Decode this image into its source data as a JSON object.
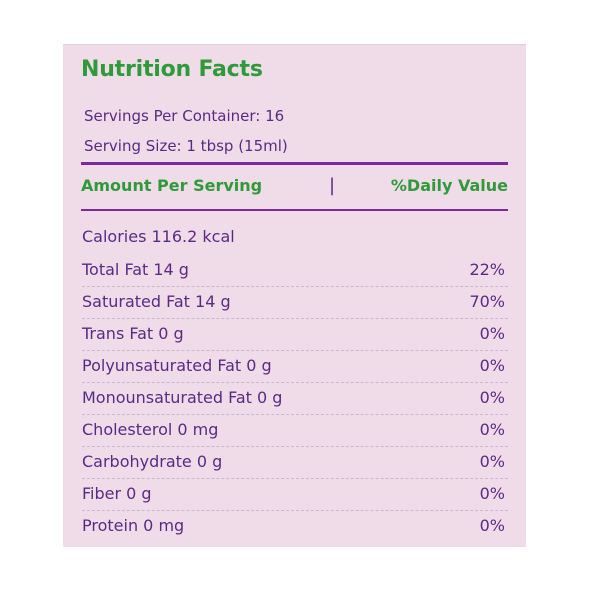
{
  "panel": {
    "title": "Nutrition Facts",
    "servings_per_container": "Servings Per Container: 16",
    "serving_size": "Serving Size: 1 tbsp (15ml)",
    "header_amount": "Amount Per Serving",
    "header_separator": "|",
    "header_daily_value": "%Daily Value",
    "calories": "Calories 116.2 kcal",
    "nutrients": [
      {
        "name": "Total Fat 14 g",
        "dv": "22%"
      },
      {
        "name": "Saturated Fat 14 g",
        "dv": "70%"
      },
      {
        "name": "Trans Fat 0 g",
        "dv": "0%"
      },
      {
        "name": "Polyunsaturated Fat 0 g",
        "dv": "0%"
      },
      {
        "name": "Monounsaturated Fat 0 g",
        "dv": "0%"
      },
      {
        "name": "Cholesterol 0 mg",
        "dv": "0%"
      },
      {
        "name": "Carbohydrate 0 g",
        "dv": "0%"
      },
      {
        "name": "Fiber 0 g",
        "dv": "0%"
      },
      {
        "name": "Protein 0 mg",
        "dv": "0%"
      }
    ]
  },
  "colors": {
    "panel_background": "#f0dbe8",
    "heading_green": "#2f9a3a",
    "text_purple": "#5a2a86",
    "rule_purple": "#7b2a9c"
  }
}
